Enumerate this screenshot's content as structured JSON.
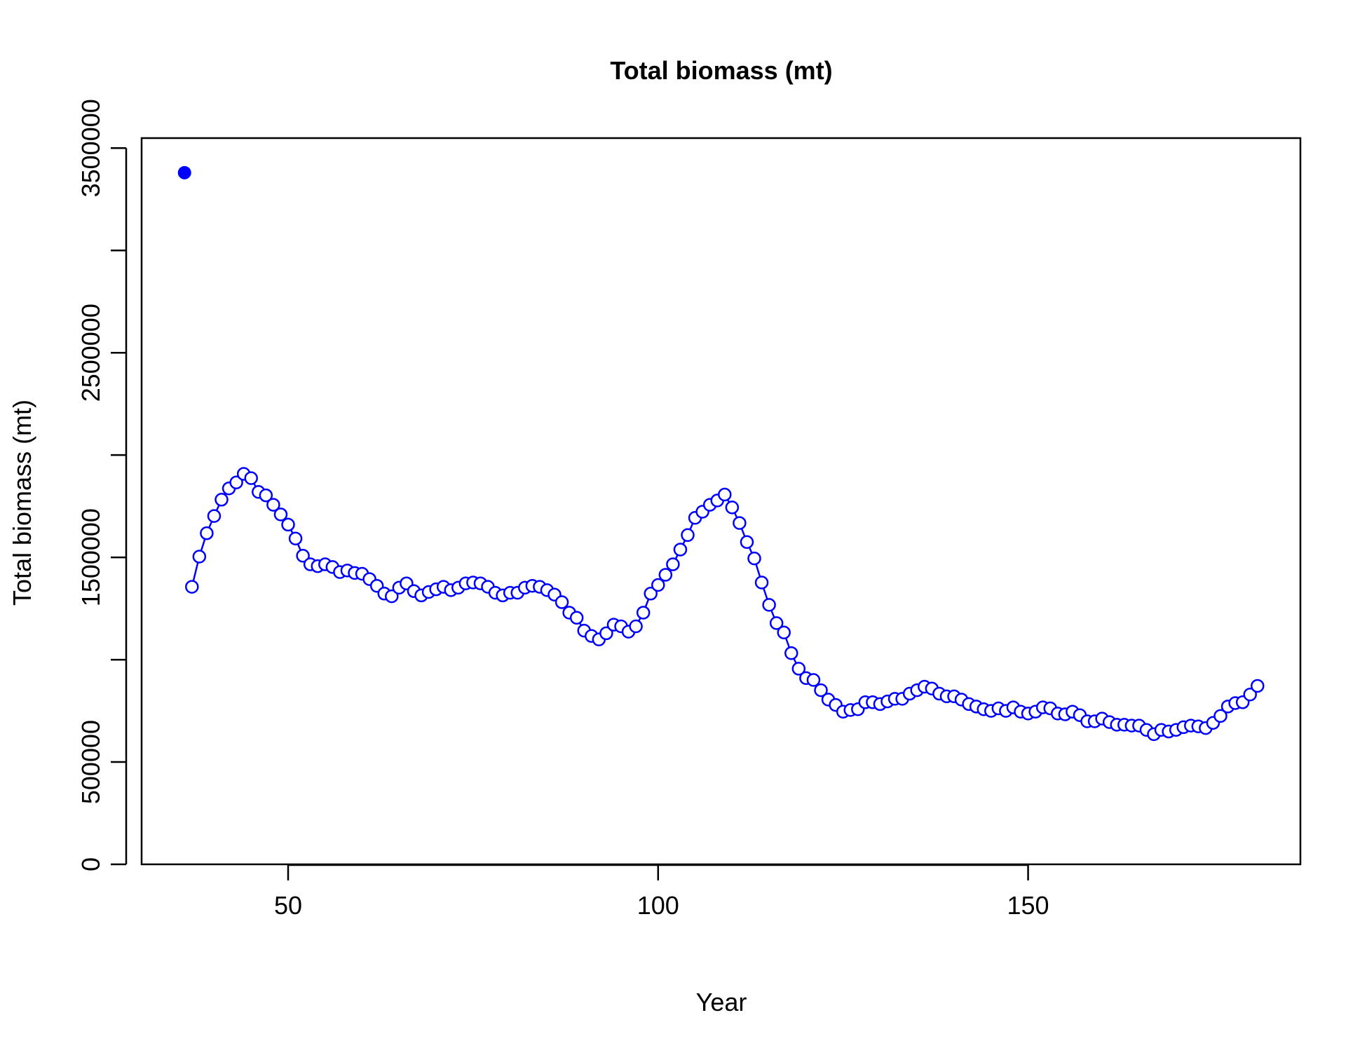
{
  "chart_data": {
    "type": "scatter-line",
    "title": "Total biomass (mt)",
    "xlabel": "Year",
    "ylabel": "Total biomass (mt)",
    "xlim": [
      30.2,
      186.8
    ],
    "xticks": [
      50,
      100,
      150
    ],
    "ylim": [
      0,
      3549000
    ],
    "yticks": [
      0,
      500000,
      1500000,
      2500000,
      3500000
    ],
    "yminor_ticks": [
      1000000,
      2000000,
      3000000
    ],
    "color": "#0000ff",
    "series": [
      {
        "marker": "filled",
        "line": false,
        "x": [
          36
        ],
        "values": [
          3380000
        ]
      },
      {
        "marker": "open",
        "line": true,
        "x": [
          37,
          38,
          39,
          40,
          41,
          42,
          43,
          44,
          45,
          46,
          47,
          48,
          49,
          50,
          51,
          52,
          53,
          54,
          55,
          56,
          57,
          58,
          59,
          60,
          61,
          62,
          63,
          64,
          65,
          66,
          67,
          68,
          69,
          70,
          71,
          72,
          73,
          74,
          75,
          76,
          77,
          78,
          79,
          80,
          81,
          82,
          83,
          84,
          85,
          86,
          87,
          88,
          89,
          90,
          91,
          92,
          93,
          94,
          95,
          96,
          97,
          98,
          99,
          100,
          101,
          102,
          103,
          104,
          105,
          106,
          107,
          108,
          109,
          110,
          111,
          112,
          113,
          114,
          115,
          116,
          117,
          118,
          119,
          120,
          121,
          122,
          123,
          124,
          125,
          126,
          127,
          128,
          129,
          130,
          131,
          132,
          133,
          134,
          135,
          136,
          137,
          138,
          139,
          140,
          141,
          142,
          143,
          144,
          145,
          146,
          147,
          148,
          149,
          150,
          151,
          152,
          153,
          154,
          155,
          156,
          157,
          158,
          159,
          160,
          161,
          162,
          163,
          164,
          165,
          166,
          167,
          168,
          169,
          170,
          171,
          172,
          173,
          174,
          175,
          176,
          177,
          178,
          179,
          180,
          181
        ],
        "values": [
          1356000,
          1504000,
          1618000,
          1702000,
          1782000,
          1837000,
          1866000,
          1908000,
          1887000,
          1820000,
          1803000,
          1757000,
          1710000,
          1660000,
          1592000,
          1508000,
          1466000,
          1457000,
          1466000,
          1453000,
          1428000,
          1436000,
          1424000,
          1420000,
          1394000,
          1361000,
          1323000,
          1310000,
          1352000,
          1373000,
          1335000,
          1314000,
          1331000,
          1344000,
          1356000,
          1340000,
          1352000,
          1373000,
          1377000,
          1373000,
          1356000,
          1327000,
          1314000,
          1327000,
          1327000,
          1352000,
          1361000,
          1356000,
          1340000,
          1318000,
          1281000,
          1230000,
          1205000,
          1142000,
          1116000,
          1099000,
          1129000,
          1171000,
          1163000,
          1137000,
          1163000,
          1230000,
          1323000,
          1365000,
          1415000,
          1466000,
          1538000,
          1609000,
          1693000,
          1723000,
          1757000,
          1778000,
          1807000,
          1744000,
          1668000,
          1575000,
          1495000,
          1377000,
          1268000,
          1179000,
          1133000,
          1032000,
          956000,
          910000,
          901000,
          851000,
          805000,
          779000,
          746000,
          754000,
          758000,
          792000,
          792000,
          783000,
          796000,
          809000,
          809000,
          834000,
          851000,
          868000,
          859000,
          834000,
          821000,
          821000,
          805000,
          783000,
          771000,
          758000,
          750000,
          762000,
          750000,
          767000,
          746000,
          737000,
          746000,
          767000,
          762000,
          737000,
          733000,
          746000,
          729000,
          699000,
          699000,
          712000,
          695000,
          682000,
          682000,
          678000,
          678000,
          657000,
          636000,
          657000,
          649000,
          657000,
          670000,
          678000,
          674000,
          666000,
          691000,
          725000,
          771000,
          788000,
          792000,
          830000,
          872000
        ]
      }
    ]
  }
}
